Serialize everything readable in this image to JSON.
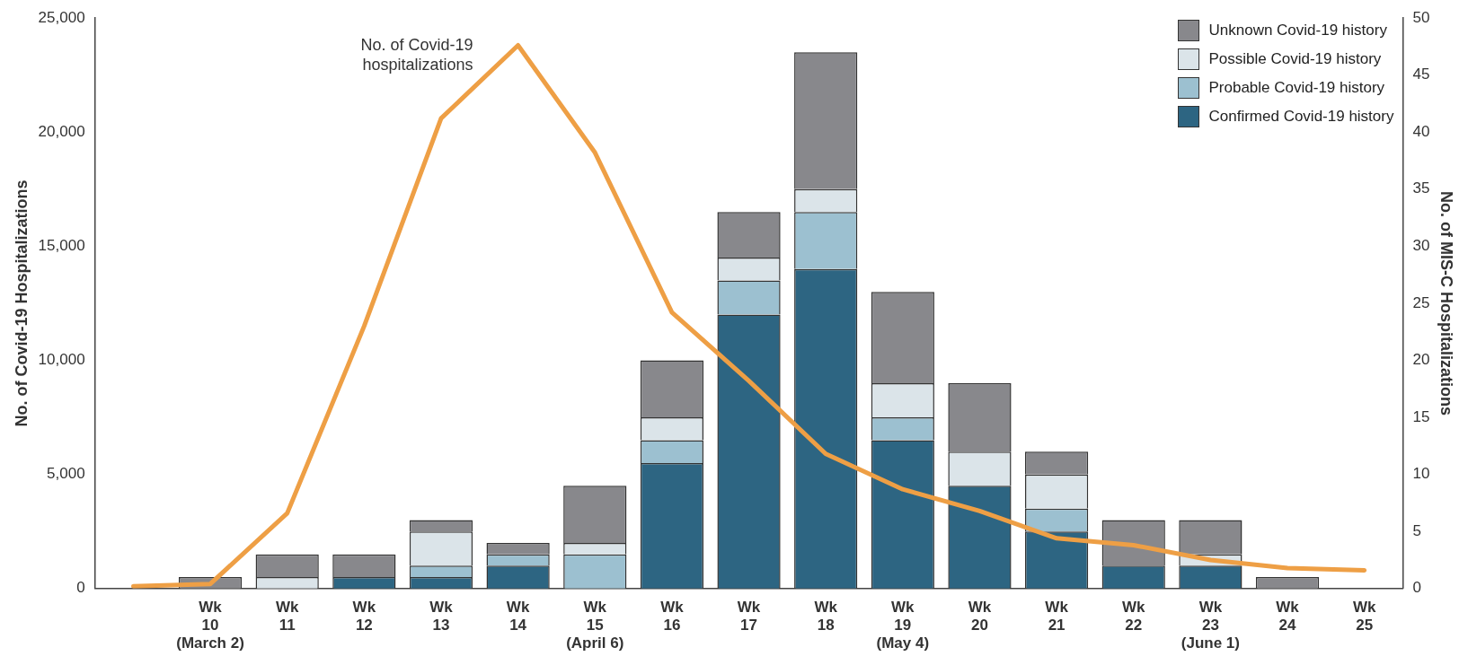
{
  "chart_data": {
    "type": "bar",
    "stacked": true,
    "ylabel": "No. of Covid-19 Hospitalizations",
    "y2label": "No. of MIS-C Hospitalizations",
    "categories": [
      null,
      "Wk\n10\n(March 2)",
      "Wk\n11",
      "Wk\n12",
      "Wk\n13",
      "Wk\n14",
      "Wk\n15\n(April 6)",
      "Wk\n16",
      "Wk\n17",
      "Wk\n18",
      "Wk\n19\n(May 4)",
      "Wk\n20",
      "Wk\n21",
      "Wk\n22",
      "Wk\n23\n(June 1)",
      "Wk\n24",
      "Wk\n25"
    ],
    "series": [
      {
        "name": "Confirmed Covid-19 history",
        "color": "#2d6582",
        "axis": "y2",
        "values": [
          0,
          0,
          0,
          1,
          1,
          2,
          0,
          11,
          24,
          28,
          13,
          9,
          5,
          2,
          2,
          0,
          0
        ]
      },
      {
        "name": "Probable Covid-19 history",
        "color": "#9cc0d0",
        "axis": "y2",
        "values": [
          0,
          0,
          0,
          0,
          1,
          1,
          3,
          2,
          3,
          5,
          2,
          0,
          2,
          0,
          0,
          0,
          0
        ]
      },
      {
        "name": "Possible Covid-19 history",
        "color": "#dbe4e9",
        "axis": "y2",
        "values": [
          0,
          0,
          1,
          0,
          3,
          0,
          1,
          2,
          2,
          2,
          3,
          3,
          3,
          0,
          1,
          0,
          0
        ]
      },
      {
        "name": "Unknown Covid-19 history",
        "color": "#88888c",
        "axis": "y2",
        "values": [
          0,
          1,
          2,
          2,
          1,
          1,
          5,
          5,
          4,
          12,
          8,
          6,
          2,
          4,
          3,
          1,
          0
        ]
      },
      {
        "name": "No. of Covid-19 hospitalizations",
        "type": "line",
        "color": "#ee9f45",
        "axis": "y",
        "values": [
          100,
          200,
          3300,
          11500,
          20600,
          23800,
          19100,
          12100,
          9100,
          5900,
          4350,
          3400,
          2200,
          1900,
          1250,
          900,
          800
        ]
      }
    ],
    "ylim": [
      0,
      25000
    ],
    "yticks": [
      0,
      {
        "value": 5000,
        "label": "5,000"
      },
      {
        "value": 10000,
        "label": "10,000"
      },
      {
        "value": 15000,
        "label": "15,000"
      },
      {
        "value": 20000,
        "label": "20,000"
      },
      {
        "value": 25000,
        "label": "25,000"
      }
    ],
    "y2lim": [
      0,
      50
    ],
    "y2ticks": [
      0,
      5,
      10,
      15,
      20,
      25,
      30,
      35,
      40,
      45,
      50
    ],
    "legend": "top right",
    "marker": "none",
    "line_style": "solid"
  }
}
